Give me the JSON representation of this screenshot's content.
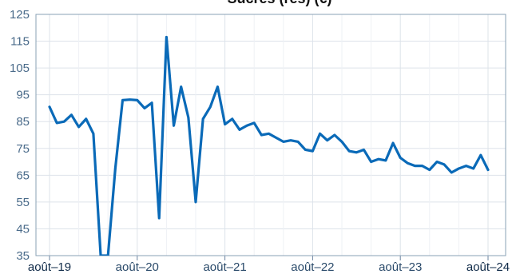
{
  "chart_data": {
    "type": "line",
    "title": "Sucres (rés) (€)",
    "xlabel": "",
    "ylabel": "",
    "x_ticks": [
      "août–19",
      "août–20",
      "août–21",
      "août–22",
      "août–23",
      "août–24"
    ],
    "y_ticks": [
      35,
      45,
      55,
      65,
      75,
      85,
      95,
      105,
      115,
      125
    ],
    "ylim": [
      35,
      125
    ],
    "xlim": [
      "2019-08",
      "2024-08"
    ],
    "grid": true,
    "series": [
      {
        "color": "#0a6ab8",
        "x": [
          "2019-08",
          "2019-09",
          "2019-10",
          "2019-11",
          "2019-12",
          "2020-01",
          "2020-02",
          "2020-03",
          "2020-04",
          "2020-05",
          "2020-06",
          "2020-07",
          "2020-08",
          "2020-09",
          "2020-10",
          "2020-11",
          "2020-12",
          "2021-01",
          "2021-02",
          "2021-03",
          "2021-04",
          "2021-05",
          "2021-06",
          "2021-07",
          "2021-08",
          "2021-09",
          "2021-10",
          "2021-11",
          "2021-12",
          "2022-01",
          "2022-02",
          "2022-03",
          "2022-04",
          "2022-05",
          "2022-06",
          "2022-07",
          "2022-08",
          "2022-09",
          "2022-10",
          "2022-11",
          "2022-12",
          "2023-01",
          "2023-02",
          "2023-03",
          "2023-04",
          "2023-05",
          "2023-06",
          "2023-07",
          "2023-08",
          "2023-09",
          "2023-10",
          "2023-11",
          "2023-12",
          "2024-01",
          "2024-02",
          "2024-03",
          "2024-04",
          "2024-05",
          "2024-06",
          "2024-07",
          "2024-08"
        ],
        "values": [
          90.5,
          84.5,
          85,
          87.5,
          83,
          86,
          80.5,
          35,
          35,
          67.5,
          93,
          93.2,
          93,
          90,
          92,
          49,
          116.5,
          83.5,
          98,
          86.5,
          55,
          86,
          90.5,
          98,
          84,
          86,
          82,
          83.5,
          84.5,
          80,
          80.5,
          79,
          77.5,
          78,
          77.5,
          74.5,
          74,
          80.5,
          78,
          80,
          77.5,
          74,
          73.5,
          74.5,
          70,
          71,
          70.5,
          77,
          71.5,
          69.5,
          68.5,
          68.5,
          67,
          70,
          69,
          66,
          67.5,
          68.5,
          67.5,
          72.5,
          67
        ]
      }
    ]
  }
}
